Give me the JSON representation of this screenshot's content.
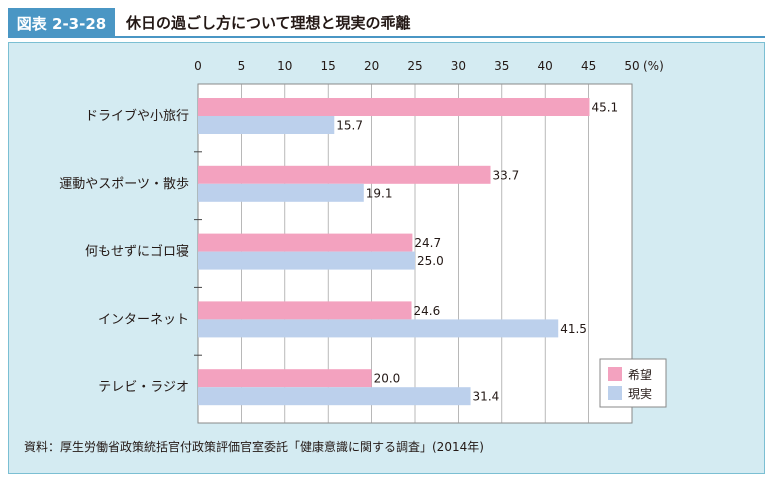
{
  "figure_label": "図表 2-3-28",
  "title": "休日の過ごし方について理想と現実の乖離",
  "source": "資料：厚生労働省政策統括官付政策評価官室委託「健康意識に関する調査」(2014年)",
  "colors": {
    "accent": "#4a96c4",
    "panel_bg": "#d4ebf2",
    "plot_bg": "#ffffff",
    "grid": "#9a9a9a",
    "ideal": "#f3a2bf",
    "reality": "#bcd0ec"
  },
  "chart_data": {
    "type": "bar",
    "orientation": "horizontal",
    "categories": [
      "ドライブや小旅行",
      "運動やスポーツ・散歩",
      "何もせずにゴロ寝",
      "インターネット",
      "テレビ・ラジオ"
    ],
    "series": [
      {
        "name": "希望",
        "values": [
          45.1,
          33.7,
          24.7,
          24.6,
          20.0
        ],
        "labels": [
          "45.1",
          "33.7",
          "24.7",
          "24.6",
          "20.0"
        ],
        "color": "#f3a2bf"
      },
      {
        "name": "現実",
        "values": [
          15.7,
          19.1,
          25.0,
          41.5,
          31.4
        ],
        "labels": [
          "15.7",
          "19.1",
          "25.0",
          "41.5",
          "31.4"
        ],
        "color": "#bcd0ec"
      }
    ],
    "xlim": [
      0,
      50
    ],
    "xticks": [
      "0",
      "5",
      "10",
      "15",
      "20",
      "25",
      "30",
      "35",
      "40",
      "45",
      "50"
    ],
    "unit": "(%)",
    "grid": true,
    "legend": "bottom-right"
  }
}
